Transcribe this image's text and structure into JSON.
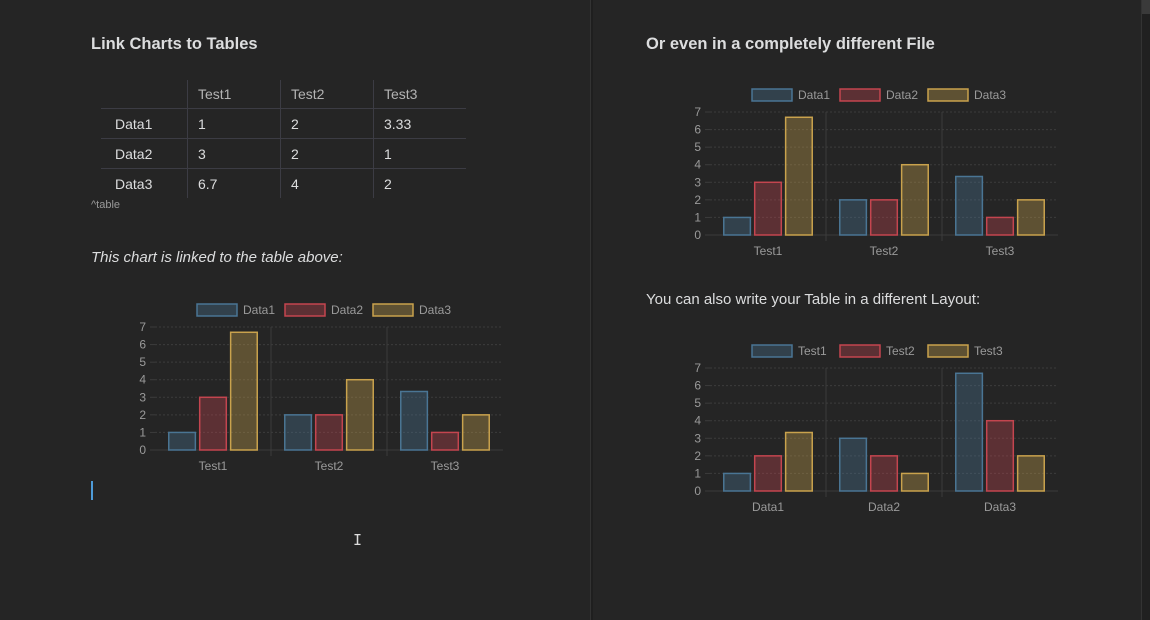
{
  "left": {
    "heading": "Link Charts to Tables",
    "table": {
      "headers": [
        "",
        "Test1",
        "Test2",
        "Test3"
      ],
      "rows": [
        [
          "Data1",
          "1",
          "2",
          "3.33"
        ],
        [
          "Data2",
          "3",
          "2",
          "1"
        ],
        [
          "Data3",
          "6.7",
          "4",
          "2"
        ]
      ]
    },
    "table_caption": "^table",
    "chart_note": "This chart is linked to the table above:"
  },
  "right": {
    "heading": "Or even in a completely different File",
    "layout_note": "You can also write your Table in a different Layout:"
  },
  "colors": {
    "series": [
      "#4a7594",
      "#c4454f",
      "#c9a24d"
    ],
    "series_fill": [
      "rgba(74,117,148,0.35)",
      "rgba(196,69,79,0.35)",
      "rgba(201,162,77,0.35)"
    ],
    "grid": "#3c3c3c",
    "tick": "#9a9a9a"
  },
  "chart_data": [
    {
      "type": "bar",
      "categories": [
        "Test1",
        "Test2",
        "Test3"
      ],
      "series": [
        {
          "name": "Data1",
          "values": [
            1,
            2,
            3.33
          ]
        },
        {
          "name": "Data2",
          "values": [
            3,
            2,
            1
          ]
        },
        {
          "name": "Data3",
          "values": [
            6.7,
            4,
            2
          ]
        }
      ],
      "ylim": [
        0,
        7
      ],
      "yticks": [
        0,
        1,
        2,
        3,
        4,
        5,
        6,
        7
      ],
      "legend": "top",
      "grid": true
    },
    {
      "type": "bar",
      "categories": [
        "Test1",
        "Test2",
        "Test3"
      ],
      "series": [
        {
          "name": "Data1",
          "values": [
            1,
            2,
            3.33
          ]
        },
        {
          "name": "Data2",
          "values": [
            3,
            2,
            1
          ]
        },
        {
          "name": "Data3",
          "values": [
            6.7,
            4,
            2
          ]
        }
      ],
      "ylim": [
        0,
        7
      ],
      "yticks": [
        0,
        1,
        2,
        3,
        4,
        5,
        6,
        7
      ],
      "legend": "top",
      "grid": true
    },
    {
      "type": "bar",
      "categories": [
        "Data1",
        "Data2",
        "Data3"
      ],
      "series": [
        {
          "name": "Test1",
          "values": [
            1,
            3,
            6.7
          ]
        },
        {
          "name": "Test2",
          "values": [
            2,
            2,
            4
          ]
        },
        {
          "name": "Test3",
          "values": [
            3.33,
            1,
            2
          ]
        }
      ],
      "ylim": [
        0,
        7
      ],
      "yticks": [
        0,
        1,
        2,
        3,
        4,
        5,
        6,
        7
      ],
      "legend": "top",
      "grid": true
    }
  ]
}
